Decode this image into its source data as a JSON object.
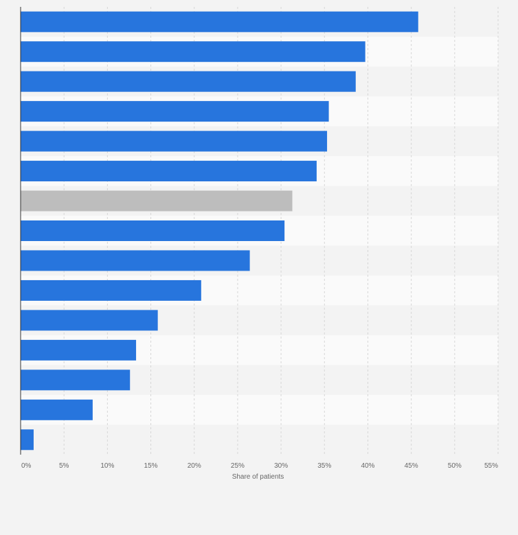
{
  "chart_data": {
    "type": "bar",
    "orientation": "horizontal",
    "title": "",
    "xlabel": "Share of patients",
    "ylabel": "",
    "xlim": [
      0,
      55
    ],
    "x_ticks": [
      0,
      5,
      10,
      15,
      20,
      25,
      30,
      35,
      40,
      45,
      50,
      55
    ],
    "x_tick_labels": [
      "0%",
      "5%",
      "10%",
      "15%",
      "20%",
      "25%",
      "30%",
      "35%",
      "40%",
      "45%",
      "50%",
      "55%"
    ],
    "grid": true,
    "categories": [
      "",
      "",
      "",
      "",
      "",
      "",
      "",
      "",
      "",
      "",
      "",
      "",
      "",
      "",
      ""
    ],
    "values": [
      45.8,
      39.7,
      38.6,
      35.5,
      35.3,
      34.1,
      31.3,
      30.4,
      26.4,
      20.8,
      15.8,
      13.3,
      12.6,
      8.3,
      1.5
    ],
    "bar_colors": [
      "#2775dd",
      "#2775dd",
      "#2775dd",
      "#2775dd",
      "#2775dd",
      "#2775dd",
      "#bdbdbd",
      "#2775dd",
      "#2775dd",
      "#2775dd",
      "#2775dd",
      "#2775dd",
      "#2775dd",
      "#2775dd",
      "#2775dd"
    ],
    "colors": {
      "bar": "#2775dd",
      "highlight": "#bdbdbd",
      "band_light": "#fafafa",
      "band_dark": "#f3f3f3",
      "background": "#f3f3f3"
    }
  }
}
